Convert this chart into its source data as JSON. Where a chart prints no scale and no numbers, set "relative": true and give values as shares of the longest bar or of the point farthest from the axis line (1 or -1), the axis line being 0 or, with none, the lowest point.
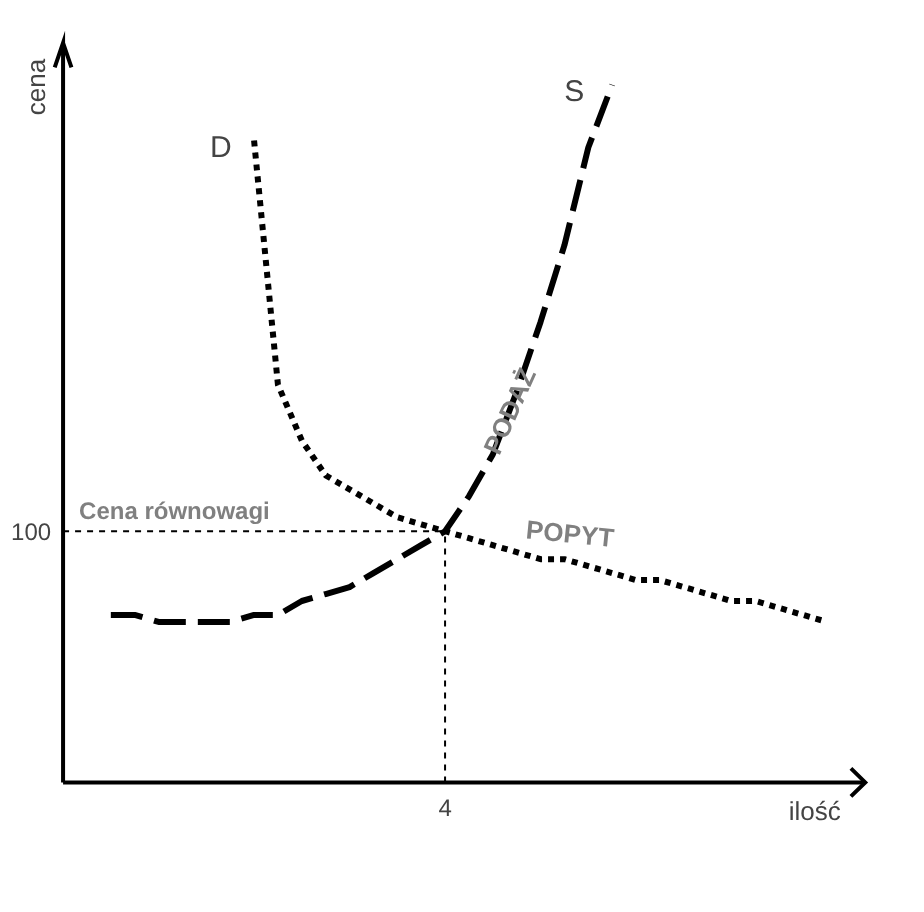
{
  "chart_data": {
    "type": "line",
    "relative": true,
    "xlabel": "ilość",
    "ylabel": "cena",
    "categories": [
      null,
      null,
      null,
      null,
      null,
      null,
      null,
      null,
      null,
      null,
      null,
      null,
      null,
      null,
      null,
      null,
      null,
      null,
      null,
      null,
      null,
      null,
      null,
      null,
      null,
      null,
      null,
      null,
      null,
      null,
      null,
      null
    ],
    "series": [
      {
        "name": "S",
        "color": "#000000",
        "line_style": "dashed",
        "values": [
          null,
          0.24,
          0.24,
          0.23,
          0.23,
          0.23,
          0.23,
          0.24,
          0.24,
          0.26,
          0.27,
          0.28,
          0.3,
          0.32,
          0.34,
          0.36,
          0.41,
          0.47,
          0.56,
          0.66,
          0.77,
          0.91,
          1.0,
          null,
          null,
          null,
          null,
          null,
          null,
          null,
          null,
          null
        ]
      },
      {
        "name": "D",
        "color": "#000000",
        "line_style": "dotted",
        "values": [
          null,
          null,
          null,
          null,
          null,
          null,
          null,
          0.92,
          0.57,
          0.49,
          0.44,
          0.42,
          0.4,
          0.38,
          0.37,
          0.36,
          0.35,
          0.34,
          0.33,
          0.32,
          0.32,
          0.31,
          0.3,
          0.29,
          0.29,
          0.28,
          0.27,
          0.26,
          0.26,
          0.25,
          0.24,
          0.23
        ]
      }
    ],
    "ref_lines": [
      {
        "axis": "y",
        "value": 0.36,
        "label": "Cena równowagi",
        "line_style": "dotted",
        "color": "#000000"
      }
    ],
    "annotations": [
      "100",
      "4",
      {
        "text": "PODAŻ",
        "y": 0.55
      },
      {
        "text": "POPYT",
        "y": 0.33
      }
    ]
  }
}
